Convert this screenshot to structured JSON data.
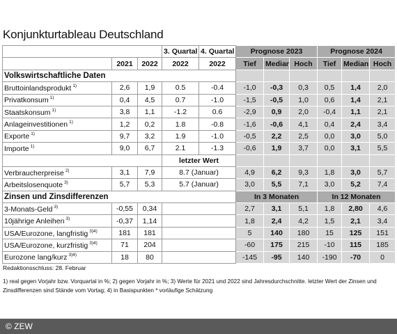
{
  "title": "Konjunkturtableau Deutschland",
  "table": {
    "header": [
      "3. Quartal",
      "4. Quartal",
      "Prognose 2023",
      "Prognose 2024"
    ],
    "subheader": [
      "2021",
      "2022",
      "2022",
      "2022",
      "Tief",
      "Median",
      "Hoch",
      "Tief",
      "Median",
      "Hoch"
    ],
    "groups": [
      {
        "title": "Volkswirtschaftliche Daten",
        "rows": [
          {
            "label": "Bruttoinlandsprodukt",
            "note": "1)",
            "values": [
              "2,6",
              "1,9",
              "0.5",
              "-0.4",
              "-1,0",
              "-0,3",
              "0,3",
              "0,5",
              "1,4",
              "2,0"
            ]
          },
          {
            "label": "Privatkonsum",
            "note": "1)",
            "values": [
              "0,4",
              "4,5",
              "0.7",
              "-1.0",
              "-1,5",
              "-0,5",
              "1,0",
              "0,6",
              "1,4",
              "2,1"
            ]
          },
          {
            "label": "Staatskonsum",
            "note": "1)",
            "values": [
              "3,8",
              "1,1",
              "-1.2",
              "0.6",
              "-2,9",
              "0,9",
              "2,0",
              "-0,4",
              "1,1",
              "2,1"
            ]
          },
          {
            "label": "Anlageinvestitionen",
            "note": "1)",
            "values": [
              "1,2",
              "0,2",
              "1.8",
              "-0.8",
              "-1,6",
              "-0,6",
              "4,1",
              "0,4",
              "2,4",
              "3,4"
            ]
          },
          {
            "label": "Exporte",
            "note": "1)",
            "values": [
              "9,7",
              "3,2",
              "1.9",
              "-1.0",
              "-0,5",
              "2,2",
              "2,5",
              "0,0",
              "3,0",
              "5,0"
            ]
          },
          {
            "label": "Importe",
            "note": "1)",
            "values": [
              "9,0",
              "6,7",
              "2.1",
              "-1.3",
              "-0,6",
              "1,9",
              "3,7",
              "0,0",
              "3,1",
              "5,5"
            ]
          }
        ]
      },
      {
        "subheader": "letzter Wert",
        "rows": [
          {
            "label": "Verbraucherpreise",
            "note": "2)",
            "values": [
              "3,1",
              "7,9",
              "8.7 (Januar)",
              "4,9",
              "6,2",
              "9,3",
              "1,8",
              "3,0",
              "5,7"
            ]
          },
          {
            "label": "Arbeitslosenquote",
            "note": "3)",
            "values": [
              "5,7",
              "5,3",
              "5.7 (Januar)",
              "3,0",
              "5,5",
              "7,1",
              "3,0",
              "5,2",
              "7,4"
            ]
          }
        ]
      },
      {
        "title": "Zinsen und Zinsdifferenzen",
        "forecast_headers": [
          "In 3 Monaten",
          "In 12 Monaten"
        ],
        "rows": [
          {
            "label": "3-Monats-Geld",
            "note": "3)",
            "values": [
              "-0,55",
              "0,34",
              "2,7",
              "3,1",
              "5,1",
              "1,8",
              "2,80",
              "4,6"
            ]
          },
          {
            "label": "10jährige Anleihen",
            "note": "3)",
            "values": [
              "-0,37",
              "1,14",
              "1,8",
              "2,4",
              "4,2",
              "1,5",
              "2,1",
              "3,4"
            ]
          },
          {
            "label": "USA/Eurozone, langfristig",
            "note": "3)4)",
            "values": [
              "181",
              "181",
              "5",
              "140",
              "180",
              "15",
              "125",
              "151"
            ]
          },
          {
            "label": "USA/Eurozone, kurzfristig",
            "note": "3)4)",
            "values": [
              "71",
              "204",
              "-60",
              "175",
              "215",
              "-10",
              "115",
              "185"
            ]
          },
          {
            "label": "Eurozone lang/kurz",
            "note": "3)4)",
            "values": [
              "18",
              "80",
              "-145",
              "-95",
              "140",
              "-190",
              "-70",
              "0"
            ]
          }
        ]
      }
    ]
  },
  "deadline": "Redaktionsschluss: 28. Februar",
  "footnotes": "1) real gegen Vorjahr bzw. Vorquartal in %; 2) gegen Vorjahr in %; 3) Werte für 2021 und 2022 sind Jahresdurchschnitte. letzter Wert der Zinsen und Zinsdifferenzen sind Stände vom Vortag; 4) in Basispunkten * vorläufige Schätzung",
  "copyright": "© ZEW"
}
